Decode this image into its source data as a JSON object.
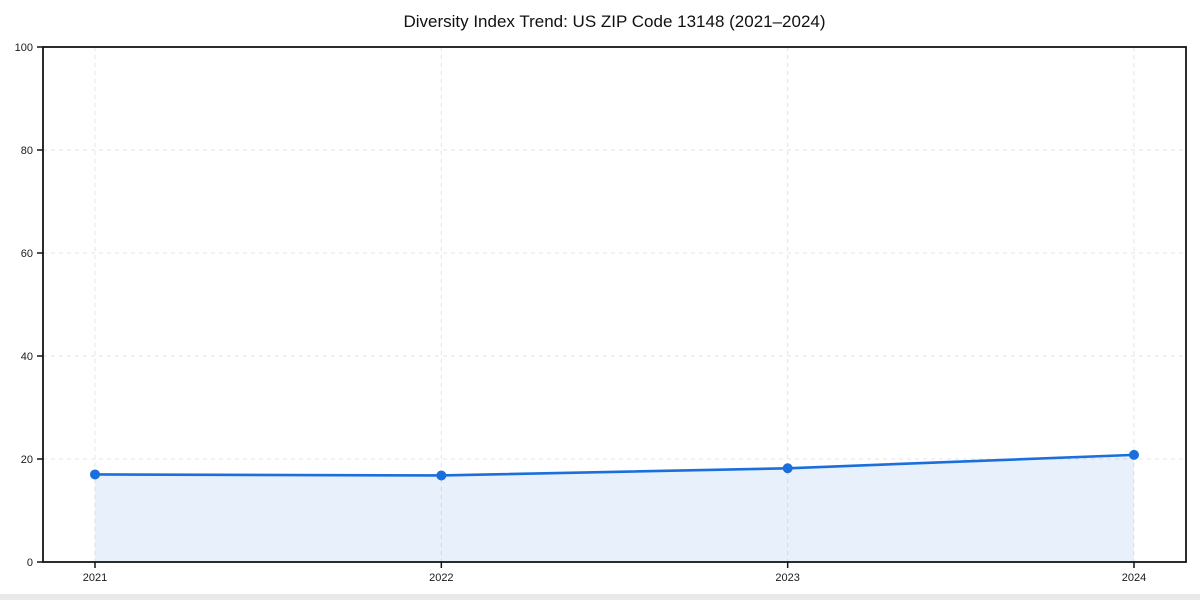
{
  "page": {
    "title": "Diversity Index Trend: US ZIP Code 13148 (2021–2024)"
  },
  "chart_data": {
    "type": "area",
    "title": "Diversity Index Trend: US ZIP Code 13148 (2021–2024)",
    "series_name": "Diversity Index",
    "categories": [
      "2021",
      "2022",
      "2023",
      "2024"
    ],
    "values": [
      17.0,
      16.8,
      18.2,
      20.8
    ],
    "xlabel": "",
    "ylabel": "",
    "ylim": [
      0,
      100
    ],
    "yticks": [
      0,
      20,
      40,
      60,
      80,
      100
    ],
    "grid": true,
    "grid_style": "dashed",
    "legend_position": "none",
    "colors": {
      "line": "#1b6fdc",
      "marker": "#1b6fdc",
      "fill": "rgba(27,111,220,0.10)",
      "gridline": "#e4e4e4",
      "spine": "#141414",
      "tick_text": "#1a1a1a",
      "background": "#ffffff",
      "bottom_strip": "#e9e9e9"
    }
  }
}
